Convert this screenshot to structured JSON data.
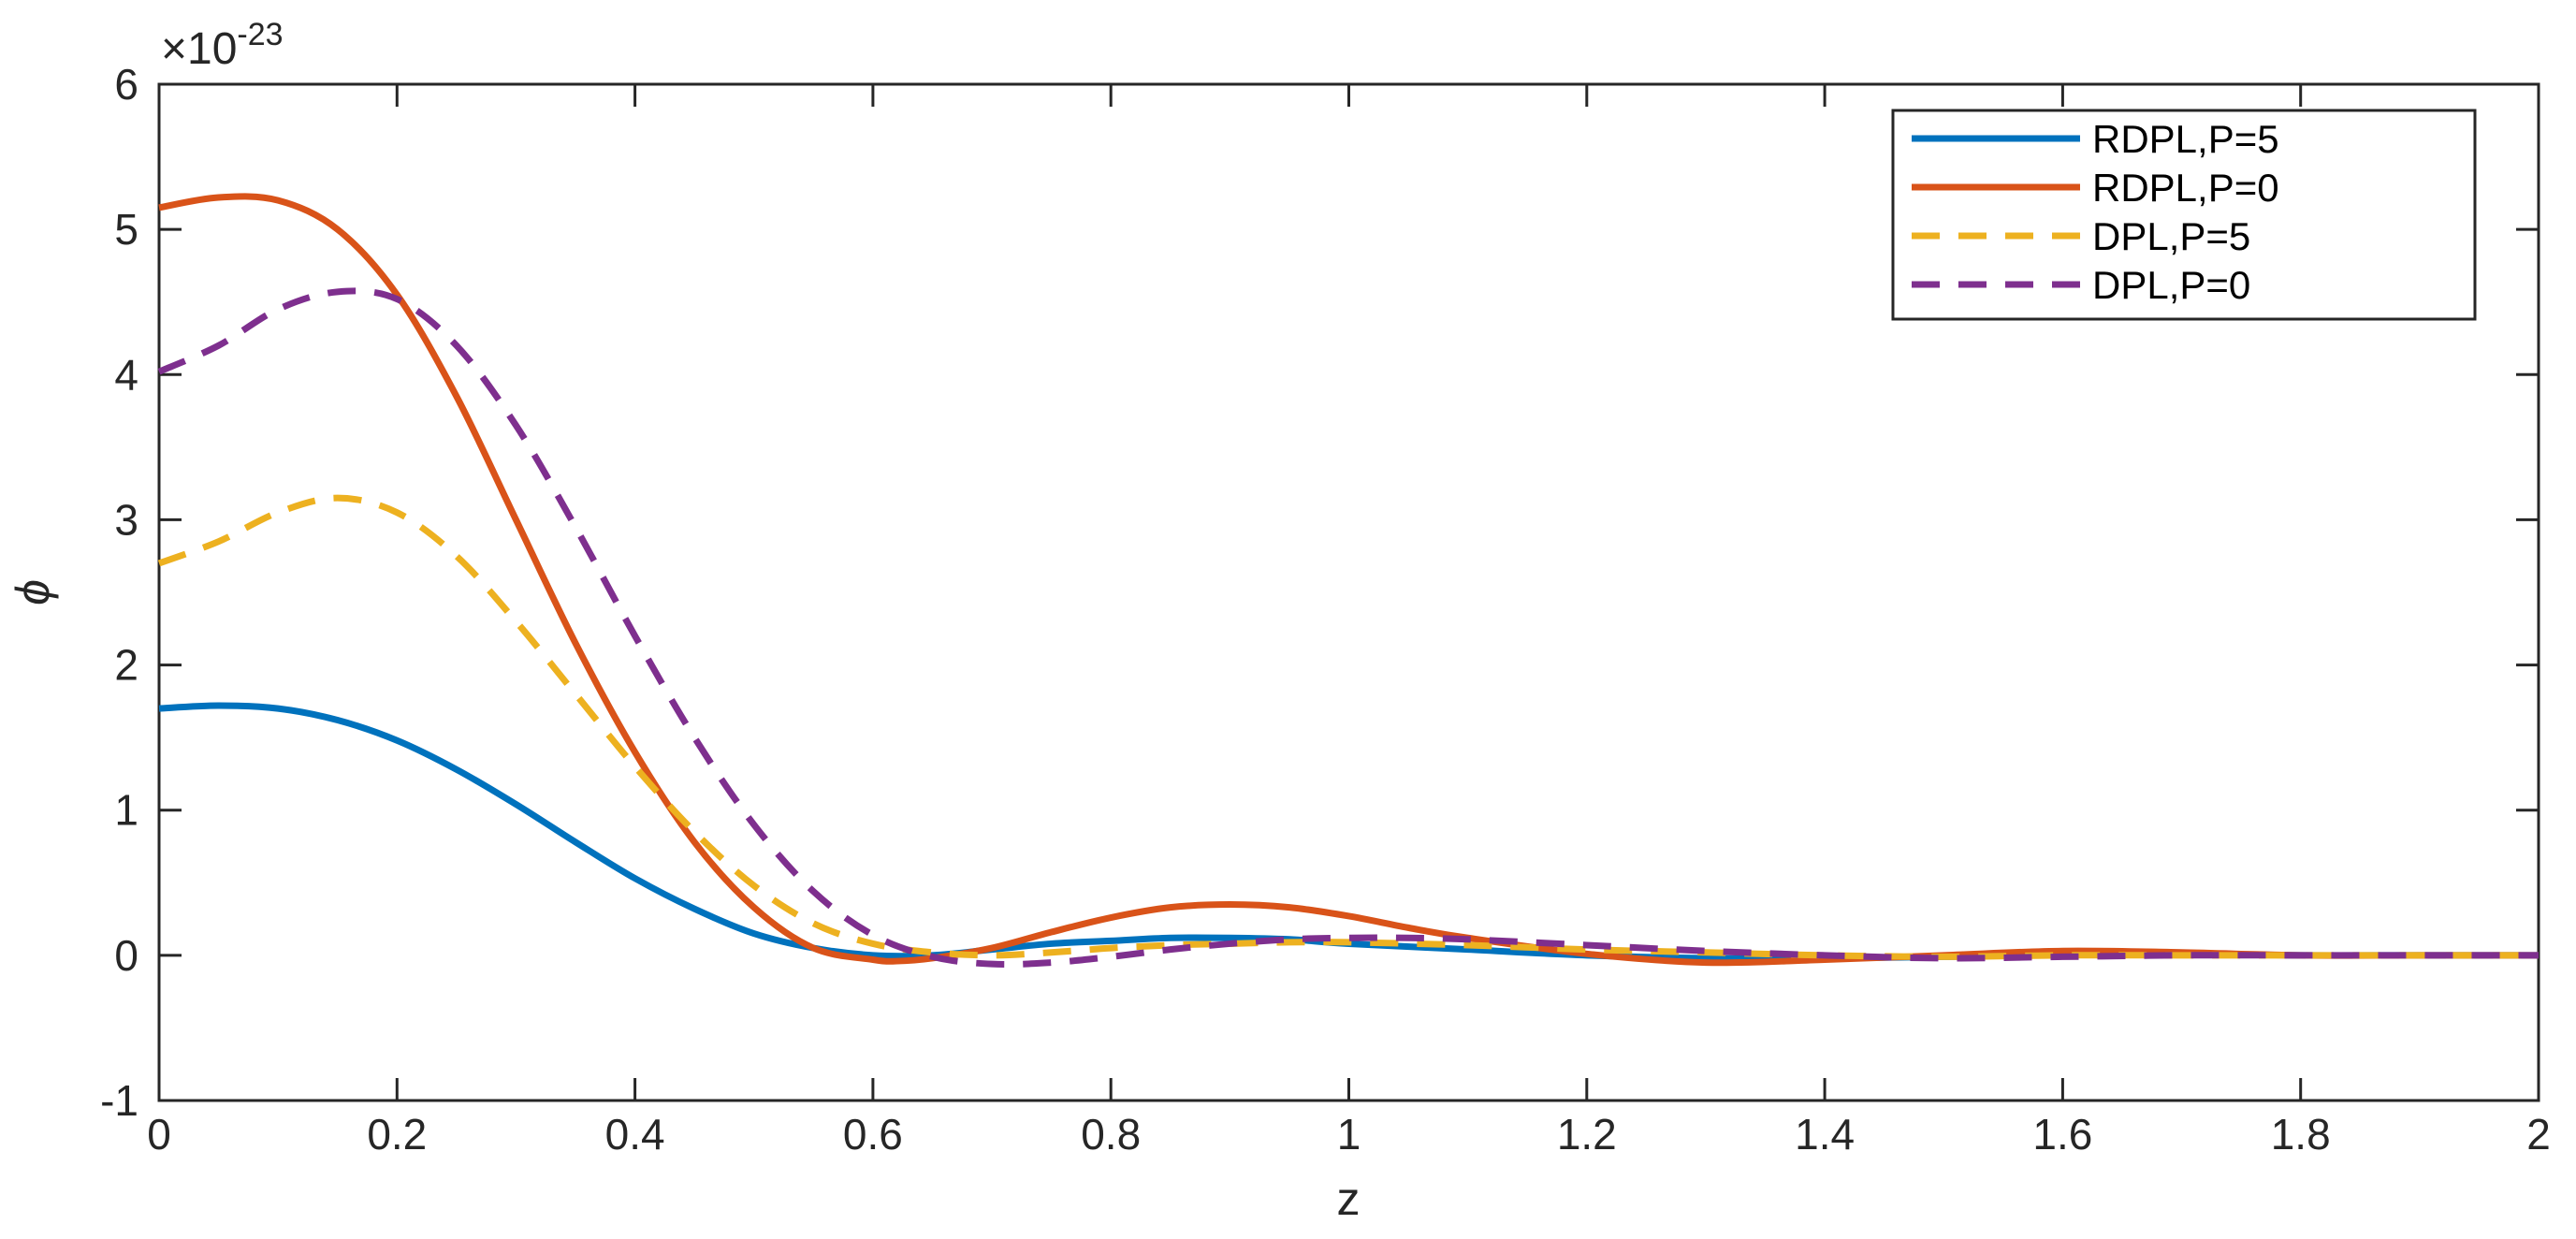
{
  "chart_data": {
    "type": "line",
    "title": "",
    "xlabel": "z",
    "ylabel": "ϕ",
    "xlim": [
      0,
      2
    ],
    "ylim": [
      -1,
      6
    ],
    "y_multiplier": {
      "base": "×10",
      "exponent": "-23"
    },
    "x_ticks": [
      "0",
      "0.2",
      "0.4",
      "0.6",
      "0.8",
      "1",
      "1.2",
      "1.4",
      "1.6",
      "1.8",
      "2"
    ],
    "y_ticks": [
      "-1",
      "0",
      "1",
      "2",
      "3",
      "4",
      "5",
      "6"
    ],
    "grid": false,
    "legend_position": "top-right",
    "series": [
      {
        "name": "RDPL,P=5",
        "color": "#0072BD",
        "style": "solid",
        "x": [
          0,
          0.05,
          0.1,
          0.15,
          0.2,
          0.25,
          0.3,
          0.35,
          0.4,
          0.45,
          0.5,
          0.55,
          0.6,
          0.65,
          0.7,
          0.75,
          0.8,
          0.85,
          0.9,
          0.95,
          1.0,
          1.1,
          1.2,
          1.3,
          1.4,
          1.5,
          1.6,
          1.7,
          1.8,
          1.9,
          2.0
        ],
        "y": [
          1.7,
          1.72,
          1.7,
          1.62,
          1.48,
          1.28,
          1.04,
          0.78,
          0.53,
          0.32,
          0.15,
          0.05,
          0.0,
          0.0,
          0.04,
          0.08,
          0.1,
          0.12,
          0.12,
          0.11,
          0.08,
          0.04,
          0.0,
          -0.02,
          -0.02,
          -0.01,
          0.01,
          0.01,
          0.0,
          0.0,
          0.0
        ]
      },
      {
        "name": "RDPL,P=0",
        "color": "#D95319",
        "style": "solid",
        "x": [
          0,
          0.05,
          0.1,
          0.15,
          0.2,
          0.25,
          0.3,
          0.35,
          0.4,
          0.45,
          0.5,
          0.55,
          0.6,
          0.62,
          0.65,
          0.7,
          0.75,
          0.8,
          0.85,
          0.9,
          0.95,
          1.0,
          1.05,
          1.1,
          1.2,
          1.3,
          1.4,
          1.5,
          1.6,
          1.7,
          1.8,
          1.9,
          2.0
        ],
        "y": [
          5.15,
          5.22,
          5.2,
          5.0,
          4.55,
          3.85,
          3.0,
          2.15,
          1.4,
          0.78,
          0.33,
          0.05,
          -0.03,
          -0.04,
          -0.02,
          0.05,
          0.16,
          0.26,
          0.33,
          0.35,
          0.33,
          0.27,
          0.19,
          0.12,
          0.01,
          -0.05,
          -0.03,
          0.0,
          0.03,
          0.02,
          0.0,
          0.0,
          0.0
        ]
      },
      {
        "name": "DPL,P=5",
        "color": "#EDB120",
        "style": "dashed",
        "x": [
          0,
          0.05,
          0.1,
          0.15,
          0.2,
          0.25,
          0.3,
          0.35,
          0.4,
          0.45,
          0.5,
          0.55,
          0.6,
          0.65,
          0.7,
          0.75,
          0.8,
          0.85,
          0.9,
          0.95,
          1.0,
          1.1,
          1.2,
          1.3,
          1.4,
          1.5,
          1.6,
          1.7,
          1.8,
          1.9,
          2.0
        ],
        "y": [
          2.7,
          2.85,
          3.05,
          3.15,
          3.05,
          2.75,
          2.3,
          1.8,
          1.3,
          0.85,
          0.48,
          0.22,
          0.08,
          0.02,
          0.0,
          0.02,
          0.05,
          0.07,
          0.08,
          0.09,
          0.09,
          0.07,
          0.04,
          0.02,
          0.0,
          -0.01,
          0.0,
          0.0,
          0.0,
          0.0,
          0.0
        ]
      },
      {
        "name": "DPL,P=0",
        "color": "#7E2F8E",
        "style": "dashed",
        "x": [
          0,
          0.05,
          0.1,
          0.15,
          0.2,
          0.25,
          0.3,
          0.35,
          0.4,
          0.45,
          0.5,
          0.55,
          0.6,
          0.65,
          0.7,
          0.75,
          0.8,
          0.85,
          0.9,
          0.95,
          1.0,
          1.05,
          1.1,
          1.2,
          1.3,
          1.4,
          1.5,
          1.6,
          1.7,
          1.8,
          1.9,
          2.0
        ],
        "y": [
          4.02,
          4.2,
          4.45,
          4.57,
          4.52,
          4.2,
          3.65,
          2.95,
          2.2,
          1.5,
          0.9,
          0.44,
          0.14,
          -0.01,
          -0.06,
          -0.05,
          -0.01,
          0.04,
          0.08,
          0.11,
          0.12,
          0.12,
          0.11,
          0.07,
          0.03,
          0.0,
          -0.02,
          -0.01,
          0.0,
          0.0,
          0.0,
          0.0
        ]
      }
    ]
  }
}
